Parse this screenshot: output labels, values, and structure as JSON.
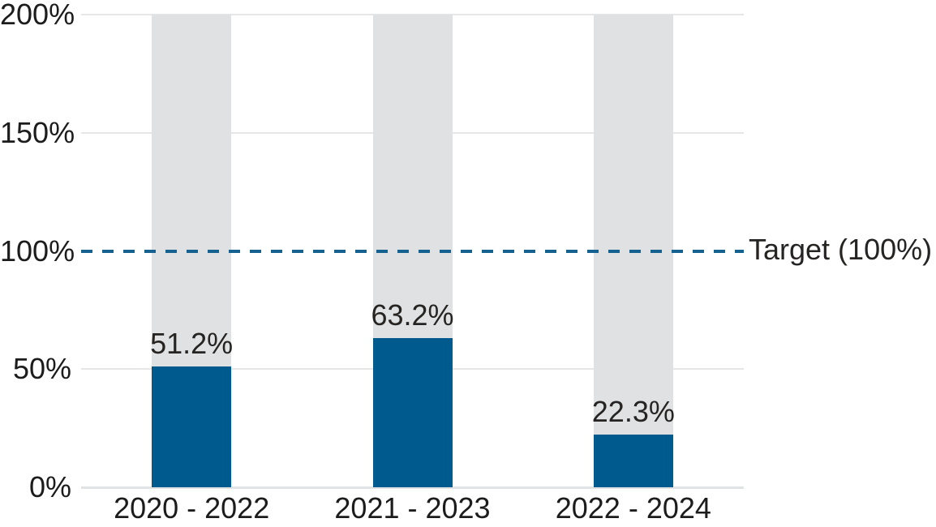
{
  "chart_data": {
    "type": "bar",
    "title": "",
    "categories": [
      "2020 - 2022",
      "2021 - 2023",
      "2022 - 2024"
    ],
    "values": [
      51.2,
      63.2,
      22.3
    ],
    "value_labels": [
      "51.2%",
      "63.2%",
      "22.3%"
    ],
    "background_bars": {
      "enabled": true,
      "top": 200
    },
    "ylim": [
      0,
      200
    ],
    "yticks": [
      0,
      50,
      100,
      150,
      200
    ],
    "ytick_labels": [
      "0%",
      "50%",
      "100%",
      "150%",
      "200%"
    ],
    "target_line": {
      "value": 100,
      "label": "Target (100%)",
      "style": "dashed"
    },
    "grid": true,
    "legend": "none",
    "colors": {
      "bar": "#015a8d",
      "background_bar": "#e0e1e2",
      "target_line": "#15618f",
      "gridline": "#e6e6e6",
      "axis_line": "#e2e3e4",
      "text": "#1c1c1c",
      "value_text": "#252423"
    }
  }
}
